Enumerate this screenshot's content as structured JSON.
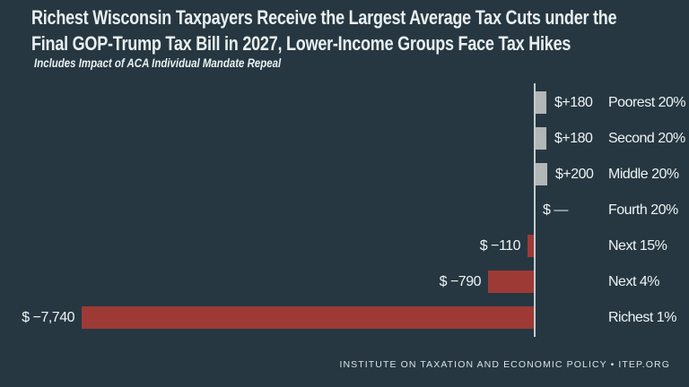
{
  "header": {
    "title_line1": "Richest Wisconsin Taxpayers Receive the Largest Average Tax Cuts under the",
    "title_line2": "Final GOP-Trump Tax Bill in 2027, Lower-Income Groups Face Tax Hikes",
    "subtitle": "Includes Impact of ACA Individual Mandate Repeal"
  },
  "footer": {
    "text": "INSTITUTE ON TAXATION AND ECONOMIC POLICY • ITEP.ORG"
  },
  "colors": {
    "background": "#263741",
    "text": "#e9eff1",
    "positive_bar": "#b3b6b6",
    "negative_bar": "#9e3a36",
    "axis": "#c2ccd0"
  },
  "chart_data": {
    "type": "bar",
    "orientation": "horizontal",
    "title": "Richest Wisconsin Taxpayers Receive the Largest Average Tax Cuts under the Final GOP-Trump Tax Bill in 2027, Lower-Income Groups Face Tax Hikes",
    "subtitle": "Includes Impact of ACA Individual Mandate Repeal",
    "xlabel": "",
    "ylabel": "",
    "grid": false,
    "legend": false,
    "zero_axis": true,
    "categories": [
      "Poorest 20%",
      "Second 20%",
      "Middle 20%",
      "Fourth 20%",
      "Next 15%",
      "Next 4%",
      "Richest 1%"
    ],
    "values": [
      180,
      180,
      200,
      0,
      -110,
      -790,
      -7740
    ],
    "value_labels": [
      "$+180",
      "$+180",
      "$+200",
      "$ —",
      "$ −110",
      "$ −790",
      "$ −7,740"
    ],
    "xlim": [
      -7900,
      200
    ]
  }
}
